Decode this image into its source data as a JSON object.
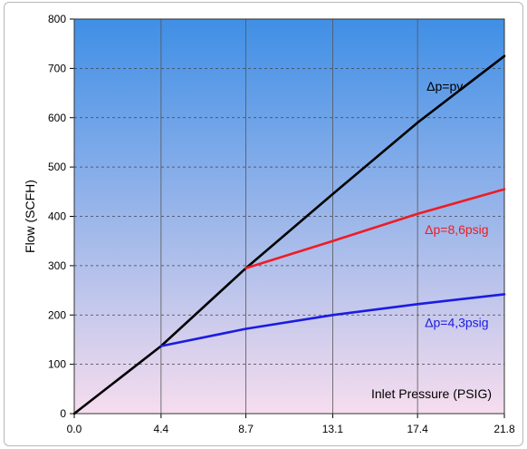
{
  "chart_data": {
    "type": "line",
    "title": "",
    "xlabel": "Inlet Pressure (PSIG)",
    "ylabel": "Flow  (SCFH)",
    "xlim": [
      0,
      21.8
    ],
    "ylim": [
      0,
      800
    ],
    "x_ticks": [
      0.0,
      4.4,
      8.7,
      13.1,
      17.4,
      21.8
    ],
    "x_tick_labels": [
      "0.0",
      "4.4",
      "8.7",
      "13.1",
      "17.4",
      "21.8"
    ],
    "y_ticks": [
      0,
      100,
      200,
      300,
      400,
      500,
      600,
      700,
      800
    ],
    "y_tick_labels": [
      "0",
      "100",
      "200",
      "300",
      "400",
      "500",
      "600",
      "700",
      "800"
    ],
    "grid": true,
    "legend": "none",
    "background_gradient": [
      "#3f8fe6",
      "#f6ddee"
    ],
    "series": [
      {
        "name": "Δp=pv",
        "color": "#000000",
        "x": [
          0.0,
          4.4,
          8.7,
          13.1,
          17.4,
          21.8
        ],
        "y": [
          0,
          137,
          295,
          445,
          590,
          725
        ]
      },
      {
        "name": "Δp=8,6psig",
        "color": "#ee1c24",
        "x": [
          8.7,
          13.1,
          17.4,
          21.8
        ],
        "y": [
          295,
          350,
          405,
          455
        ]
      },
      {
        "name": "Δp=4,3psig",
        "color": "#1c1ce0",
        "x": [
          4.4,
          8.7,
          13.1,
          17.4,
          21.8
        ],
        "y": [
          137,
          172,
          200,
          222,
          242
        ]
      }
    ]
  }
}
